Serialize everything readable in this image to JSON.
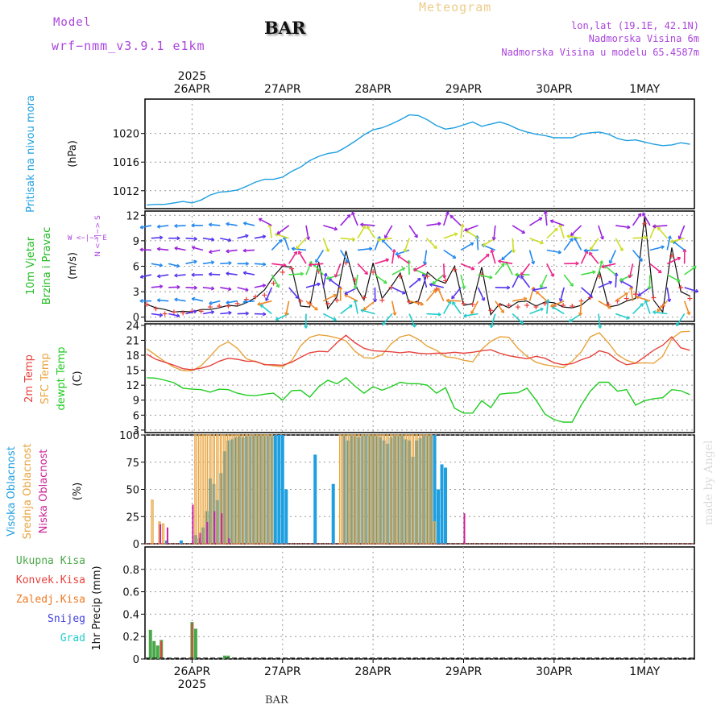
{
  "header": {
    "model_label": "Model",
    "model_name": "wrf−nmm_v3.9.1 e1km",
    "station": "BAR",
    "title": "Meteogram",
    "location": "lon,lat (19.1E, 42.1N)",
    "elevation": "Nadmorska Visina 6m",
    "model_elevation": "Nadmorska Visina u modelu 65.4587m",
    "footer_station": "BAR",
    "watermark": "made by Angel"
  },
  "colors": {
    "pressure": "#1e9fe0",
    "temp_2m": "#e8413c",
    "temp_sfc": "#e8a33c",
    "dewpoint": "#22cc22",
    "cloud_high": "#1e9fe0",
    "cloud_mid": "#e8a33c",
    "cloud_low": "#cc2299",
    "precip_total": "#4aa84a",
    "precip_conv": "#e8413c",
    "precip_frozen": "#f07820",
    "precip_snow": "#4040e0",
    "precip_hail": "#22cccc",
    "model_label": "#aa44dd"
  },
  "chart_data": [
    {
      "type": "line",
      "panel": "pressure",
      "ylabel": "Pritisak na nivou mora",
      "unit": "(hPa)",
      "ylim": [
        1009.5,
        1024.8
      ],
      "yticks": [
        1012,
        1016,
        1020
      ],
      "x_days": [
        25.5,
        25.6,
        25.7,
        25.8,
        25.9,
        26.0,
        26.1,
        26.2,
        26.3,
        26.4,
        26.5,
        26.6,
        26.7,
        26.8,
        26.9,
        27.0,
        27.1,
        27.2,
        27.3,
        27.4,
        27.5,
        27.6,
        27.7,
        27.8,
        27.9,
        28.0,
        28.1,
        28.2,
        28.3,
        28.4,
        28.5,
        28.6,
        28.7,
        28.8,
        28.9,
        29.0,
        29.1,
        29.2,
        29.3,
        29.4,
        29.5,
        29.6,
        29.7,
        29.8,
        29.9,
        30.0,
        30.1,
        30.2,
        30.3,
        30.4,
        30.5,
        30.6,
        30.7,
        30.8,
        30.9,
        31.0,
        31.1,
        31.2,
        31.3,
        31.4,
        31.5
      ],
      "series": [
        {
          "values": [
            1010.0,
            1010.1,
            1010.1,
            1010.3,
            1010.5,
            1010.3,
            1010.7,
            1011.4,
            1011.8,
            1011.9,
            1012.1,
            1012.6,
            1013.2,
            1013.6,
            1013.6,
            1013.9,
            1014.7,
            1015.3,
            1016.2,
            1016.8,
            1017.2,
            1017.4,
            1018.1,
            1018.9,
            1019.8,
            1020.5,
            1020.8,
            1021.3,
            1021.9,
            1022.6,
            1022.5,
            1021.9,
            1021.1,
            1020.6,
            1020.8,
            1021.2,
            1021.6,
            1021.0,
            1021.3,
            1021.6,
            1021.2,
            1020.6,
            1020.2,
            1019.9,
            1019.7,
            1019.4,
            1019.4,
            1019.4,
            1019.9,
            1020.1,
            1020.2,
            1019.9,
            1019.3,
            1019.0,
            1019.1,
            1018.8,
            1018.5,
            1018.3,
            1018.4,
            1018.7,
            1018.5
          ]
        }
      ]
    },
    {
      "type": "line",
      "panel": "wind",
      "ylabel": "10m Vjetar",
      "ylabel2": "Brzina i Pravac",
      "unit": "(m/s)",
      "compass": "W <−|−> E",
      "compass_v": "N <−|−> S",
      "ylim": [
        -0.5,
        12.5
      ],
      "yticks": [
        0,
        3,
        6,
        9,
        12
      ],
      "x_days": [
        25.5,
        25.6,
        25.7,
        25.8,
        25.9,
        26.0,
        26.1,
        26.2,
        26.3,
        26.4,
        26.5,
        26.6,
        26.7,
        26.8,
        26.9,
        27.0,
        27.1,
        27.2,
        27.3,
        27.4,
        27.5,
        27.6,
        27.7,
        27.8,
        27.9,
        28.0,
        28.1,
        28.2,
        28.3,
        28.4,
        28.5,
        28.6,
        28.7,
        28.8,
        28.9,
        29.0,
        29.1,
        29.2,
        29.3,
        29.4,
        29.5,
        29.6,
        29.7,
        29.8,
        29.9,
        30.0,
        30.1,
        30.2,
        30.3,
        30.4,
        30.5,
        30.6,
        30.7,
        30.8,
        30.9,
        31.0,
        31.1,
        31.2,
        31.3,
        31.4,
        31.5
      ],
      "series": [
        {
          "name": "speed",
          "values": [
            1.5,
            1.1,
            0.9,
            0.6,
            0.7,
            0.6,
            0.9,
            0.9,
            1.1,
            1.4,
            1.3,
            1.7,
            2.3,
            3.2,
            4.8,
            6.0,
            5.9,
            1.3,
            1.2,
            6.5,
            1.0,
            2.4,
            7.8,
            3.8,
            2.0,
            6.4,
            2.2,
            3.6,
            5.2,
            1.6,
            1.9,
            5.3,
            4.4,
            4.0,
            6.0,
            1.4,
            1.6,
            5.9,
            0.3,
            1.6,
            1.1,
            1.8,
            1.9,
            1.3,
            1.8,
            1.7,
            1.2,
            1.1,
            1.4,
            2.3,
            5.5,
            1.2,
            1.4,
            1.9,
            2.2,
            11.9,
            2.0,
            0.6,
            8.2,
            3.0,
            2.5
          ]
        },
        {
          "name": "gust",
          "values": [
            1.5,
            1.0,
            0.4,
            0.6,
            0.5,
            0.7,
            0.7,
            1.2,
            1.3,
            1.3,
            1.6,
            2.1,
            2.4,
            2.6,
            4.0,
            5.3,
            5.7,
            1.9,
            1.6,
            5.4,
            1.6,
            2.0,
            6.4,
            4.4,
            2.3,
            5.3,
            2.0,
            3.5,
            4.8,
            1.8,
            1.7,
            4.8,
            3.3,
            4.3,
            5.6,
            1.6,
            1.5,
            5.0,
            0.8,
            1.4,
            1.4,
            1.2,
            1.4,
            1.2,
            1.6,
            1.3,
            1.4,
            1.3,
            1.9,
            2.3,
            4.8,
            1.5,
            1.9,
            2.2,
            2.7,
            11.0,
            2.3,
            1.3,
            7.2,
            3.5,
            2.2
          ]
        }
      ]
    },
    {
      "type": "line",
      "panel": "temperature",
      "ylabels": [
        "2m Temp",
        "SFC Temp",
        "dewpt Temp"
      ],
      "unit": "(C)",
      "ylim": [
        2.5,
        24.3
      ],
      "yticks": [
        3,
        6,
        9,
        12,
        15,
        18,
        21,
        24
      ],
      "x_days": [
        25.5,
        25.6,
        25.7,
        25.8,
        25.9,
        26.0,
        26.1,
        26.2,
        26.3,
        26.4,
        26.5,
        26.6,
        26.7,
        26.8,
        26.9,
        27.0,
        27.1,
        27.2,
        27.3,
        27.4,
        27.5,
        27.6,
        27.7,
        27.8,
        27.9,
        28.0,
        28.1,
        28.2,
        28.3,
        28.4,
        28.5,
        28.6,
        28.7,
        28.8,
        28.9,
        29.0,
        29.1,
        29.2,
        29.3,
        29.4,
        29.5,
        29.6,
        29.7,
        29.8,
        29.9,
        30.0,
        30.1,
        30.2,
        30.3,
        30.4,
        30.5,
        30.6,
        30.7,
        30.8,
        30.9,
        31.0,
        31.1,
        31.2,
        31.3,
        31.4,
        31.5
      ],
      "series": [
        {
          "name": "2m Temp",
          "values": [
            18.2,
            17.2,
            16.6,
            16.0,
            15.3,
            15.1,
            15.4,
            15.9,
            16.8,
            17.4,
            17.2,
            16.8,
            16.8,
            16.1,
            16.1,
            16.0,
            16.6,
            17.6,
            18.5,
            18.8,
            18.7,
            20.5,
            22.0,
            20.5,
            19.4,
            18.9,
            18.8,
            18.7,
            18.5,
            18.7,
            18.4,
            18.3,
            18.4,
            18.4,
            18.6,
            18.4,
            18.6,
            18.9,
            19.1,
            18.4,
            17.9,
            17.6,
            17.3,
            17.8,
            17.4,
            16.5,
            16.1,
            16.3,
            17.1,
            17.7,
            18.9,
            18.4,
            17.0,
            16.1,
            16.4,
            17.7,
            19.0,
            20.0,
            21.7,
            19.5,
            19.0
          ]
        },
        {
          "name": "SFC Temp",
          "values": [
            19.3,
            18.0,
            16.7,
            15.6,
            14.9,
            14.9,
            15.9,
            17.8,
            19.8,
            20.7,
            19.4,
            17.3,
            16.7,
            16.2,
            15.9,
            15.7,
            16.9,
            19.9,
            21.6,
            22.1,
            21.9,
            21.5,
            20.9,
            18.8,
            17.5,
            17.4,
            18.1,
            20.3,
            21.7,
            22.1,
            21.2,
            19.8,
            19.0,
            17.7,
            17.5,
            17.0,
            16.7,
            19.2,
            20.8,
            21.7,
            21.6,
            19.4,
            17.8,
            16.6,
            16.1,
            15.8,
            15.5,
            16.8,
            18.7,
            21.7,
            22.5,
            20.5,
            18.1,
            17.0,
            16.4,
            16.5,
            16.4,
            17.8,
            21.3,
            22.7,
            22.8
          ]
        },
        {
          "name": "dewpt Temp",
          "values": [
            13.5,
            13.4,
            13.0,
            12.5,
            11.4,
            11.2,
            11.1,
            10.6,
            11.2,
            11.1,
            10.4,
            10.0,
            9.9,
            10.2,
            10.4,
            9.0,
            10.9,
            11.0,
            9.6,
            11.7,
            13.0,
            12.3,
            13.5,
            11.8,
            10.4,
            11.7,
            11.0,
            11.7,
            12.6,
            12.3,
            12.3,
            12.0,
            10.4,
            11.5,
            7.4,
            6.4,
            6.4,
            8.9,
            7.5,
            10.2,
            10.4,
            10.5,
            11.4,
            9.0,
            6.2,
            5.1,
            4.6,
            4.6,
            8.0,
            10.8,
            12.6,
            12.6,
            10.8,
            11.1,
            8.0,
            8.9,
            9.3,
            9.5,
            11.1,
            10.9,
            10.1
          ]
        }
      ]
    },
    {
      "type": "bar",
      "panel": "clouds",
      "ylabels": [
        "Visoka Oblacnost",
        "Srednja Oblacnost",
        "Niska Oblacnost"
      ],
      "unit": "(%)",
      "ylim": [
        0,
        100
      ],
      "yticks": [
        0,
        25,
        50,
        75,
        100
      ],
      "x_days": [
        25.56,
        25.6,
        25.64,
        25.68,
        25.72,
        25.76,
        25.8,
        25.84,
        25.88,
        25.92,
        25.96,
        26.0,
        26.04,
        26.08,
        26.12,
        26.16,
        26.2,
        26.24,
        26.28,
        26.32,
        26.36,
        26.4,
        26.44,
        26.48,
        26.52,
        26.56,
        26.6,
        26.64,
        26.68,
        26.72,
        26.76,
        26.8,
        26.84,
        26.88,
        26.92,
        26.96,
        27.0,
        27.04,
        27.08,
        27.12,
        27.16,
        27.2,
        27.24,
        27.28,
        27.32,
        27.36,
        27.4,
        27.44,
        27.48,
        27.52,
        27.56,
        27.6,
        27.64,
        27.68,
        27.72,
        27.76,
        27.8,
        27.84,
        27.88,
        27.92,
        27.96,
        28.0,
        28.04,
        28.08,
        28.12,
        28.16,
        28.2,
        28.24,
        28.28,
        28.32,
        28.36,
        28.4,
        28.44,
        28.48,
        28.52,
        28.56,
        28.6,
        28.64,
        28.68,
        28.72,
        28.76,
        28.8,
        28.84,
        28.88,
        28.92,
        28.96,
        29.0
      ],
      "series": [
        {
          "name": "Visoka Oblacnost",
          "values": [
            0,
            0,
            0,
            3,
            0,
            0,
            0,
            3,
            0,
            0,
            0,
            8,
            5,
            15,
            30,
            60,
            55,
            40,
            65,
            85,
            95,
            96,
            98,
            99,
            98,
            99,
            99,
            100,
            100,
            100,
            99,
            100,
            99,
            100,
            100,
            100,
            50,
            0,
            0,
            0,
            0,
            0,
            0,
            0,
            82,
            0,
            0,
            0,
            0,
            55,
            0,
            0,
            100,
            95,
            100,
            99,
            98,
            100,
            100,
            100,
            100,
            99,
            98,
            95,
            92,
            98,
            100,
            99,
            100,
            96,
            95,
            80,
            95,
            97,
            100,
            100,
            100,
            100,
            50,
            73,
            70,
            0,
            0,
            0,
            0,
            0,
            0
          ]
        },
        {
          "name": "Srednja Oblacnost",
          "values": [
            40,
            0,
            20,
            18,
            0,
            0,
            0,
            0,
            0,
            0,
            0,
            0,
            100,
            100,
            100,
            100,
            100,
            100,
            100,
            100,
            100,
            100,
            100,
            100,
            100,
            100,
            100,
            100,
            100,
            100,
            100,
            100,
            100,
            100,
            0,
            0,
            0,
            0,
            0,
            0,
            0,
            0,
            0,
            0,
            0,
            0,
            0,
            0,
            0,
            0,
            0,
            0,
            100,
            100,
            100,
            100,
            100,
            100,
            100,
            100,
            100,
            100,
            100,
            100,
            100,
            100,
            100,
            100,
            100,
            100,
            100,
            100,
            100,
            100,
            100,
            100,
            100,
            100,
            20,
            0,
            0,
            0,
            0,
            0,
            0,
            0,
            0
          ]
        },
        {
          "name": "Niska Oblacnost",
          "values": [
            0,
            0,
            18,
            0,
            15,
            0,
            0,
            0,
            0,
            0,
            0,
            36,
            0,
            10,
            0,
            20,
            0,
            30,
            0,
            28,
            0,
            5,
            0,
            0,
            0,
            0,
            0,
            0,
            0,
            0,
            0,
            0,
            0,
            0,
            0,
            0,
            0,
            0,
            0,
            0,
            0,
            0,
            0,
            0,
            0,
            0,
            0,
            0,
            0,
            0,
            0,
            0,
            0,
            0,
            0,
            0,
            0,
            0,
            0,
            0,
            0,
            0,
            0,
            0,
            0,
            0,
            0,
            0,
            0,
            0,
            0,
            0,
            0,
            0,
            0,
            0,
            0,
            0,
            0,
            0,
            0,
            0,
            0,
            0,
            0,
            0,
            28
          ]
        }
      ]
    },
    {
      "type": "bar",
      "panel": "precip",
      "ylabels": [
        "Ukupna Kisa",
        "Konvek.Kisa",
        "Zaledj.Kisa",
        "Snijeg",
        "Grad"
      ],
      "ylabel": "1hr Precip (mm)",
      "ylim": [
        0,
        1.0
      ],
      "yticks": [
        0,
        0.2,
        0.4,
        0.6,
        0.8
      ],
      "x_days": [
        25.54,
        25.58,
        25.62,
        25.66,
        25.7,
        25.74,
        26.0,
        26.04,
        26.08,
        26.12,
        26.36,
        26.4
      ],
      "series": [
        {
          "name": "Ukupna Kisa",
          "values": [
            0.26,
            0.16,
            0.12,
            0.17,
            0.0,
            0.0,
            0.33,
            0.27,
            0.0,
            0.0,
            0.03,
            0.03
          ]
        },
        {
          "name": "Konvek.Kisa",
          "values": [
            0.0,
            0.0,
            0.0,
            0.16,
            0.0,
            0.0,
            0.32,
            0.0,
            0.0,
            0.0,
            0.0,
            0.0
          ]
        }
      ]
    }
  ],
  "x_axis": {
    "xlim": [
      25.48,
      31.55
    ],
    "day_ticks": [
      26,
      27,
      28,
      29,
      30,
      31
    ],
    "tick_labels": [
      "26APR",
      "27APR",
      "28APR",
      "29APR",
      "30APR",
      "1MAY"
    ],
    "year": "2025"
  }
}
